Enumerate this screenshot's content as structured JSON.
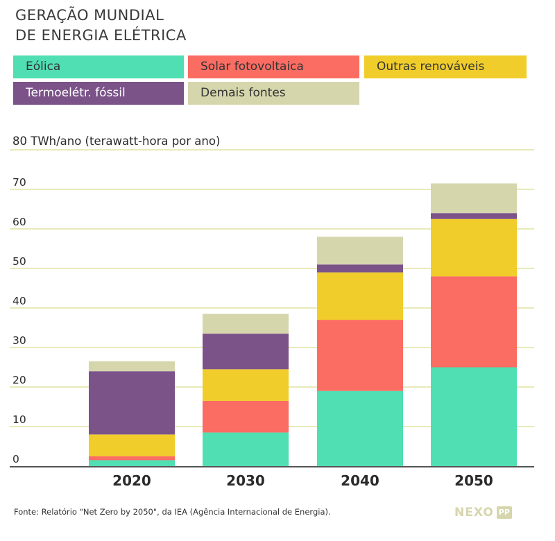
{
  "header": {
    "title_line1": "GERAÇÃO MUNDIAL",
    "title_line2": "DE ENERGIA ELÉTRICA"
  },
  "legend": [
    {
      "label": "Eólica",
      "color": "#4fdfb3"
    },
    {
      "label": "Solar fotovoltaica",
      "color": "#fb6c62"
    },
    {
      "label": "Outras renováveis",
      "color": "#f0cd2b"
    },
    {
      "label": "Termoelétr. fóssil",
      "color": "#7b5389"
    },
    {
      "label": "Demais fontes",
      "color": "#d6d6ad"
    }
  ],
  "chart_data": {
    "type": "bar",
    "stacked": true,
    "categories": [
      "2020",
      "2030",
      "2040",
      "2050"
    ],
    "series": [
      {
        "name": "Eólica",
        "color": "#4fdfb3",
        "values": [
          1.5,
          8.5,
          19,
          25
        ]
      },
      {
        "name": "Solar fotovoltaica",
        "color": "#fb6c62",
        "values": [
          1,
          8,
          18,
          23
        ]
      },
      {
        "name": "Outras renováveis",
        "color": "#f0cd2b",
        "values": [
          5.5,
          8,
          12,
          14.5
        ]
      },
      {
        "name": "Termoelétr. fóssil",
        "color": "#7b5389",
        "values": [
          16,
          9,
          2,
          1.5
        ]
      },
      {
        "name": "Demais fontes",
        "color": "#d6d6ad",
        "values": [
          2.5,
          5,
          7,
          7.5
        ]
      }
    ],
    "ylabel": "80 TWh/ano (terawatt-hora por ano)",
    "yticks": [
      "0",
      "10",
      "20",
      "30",
      "40",
      "50",
      "60",
      "70"
    ],
    "ylim": [
      0,
      80
    ],
    "grid": true,
    "legend_position": "top"
  },
  "footer": {
    "source": "Fonte: Relatório \"Net Zero by 2050\", da IEA (Agência Internacional de Energia).",
    "logo_word": "NEXO",
    "logo_badge": "PP"
  }
}
